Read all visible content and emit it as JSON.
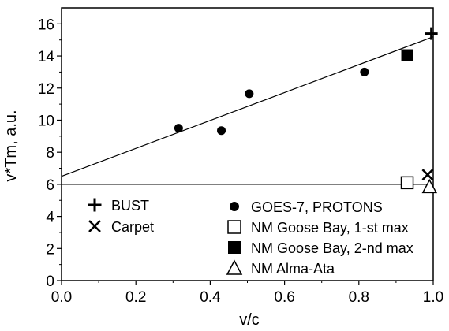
{
  "chart_data": {
    "type": "scatter",
    "xlabel": "v/c",
    "ylabel": "v*Tm, a.u.",
    "xlim": [
      0.0,
      1.0
    ],
    "ylim": [
      0,
      17
    ],
    "x_ticks": [
      "0.0",
      "0.2",
      "0.4",
      "0.6",
      "0.8",
      "1.0"
    ],
    "y_ticks": [
      "0",
      "2",
      "4",
      "6",
      "8",
      "10",
      "12",
      "14",
      "16"
    ],
    "grid": false,
    "legend_position": "bottom",
    "series": [
      {
        "name": "BUST",
        "marker": "plus",
        "points": [
          {
            "x": 0.995,
            "y": 15.4
          }
        ]
      },
      {
        "name": "Carpet",
        "marker": "cross",
        "points": [
          {
            "x": 0.985,
            "y": 6.6
          }
        ]
      },
      {
        "name": "GOES-7, PROTONS",
        "marker": "filled-circle",
        "points": [
          {
            "x": 0.315,
            "y": 9.5
          },
          {
            "x": 0.43,
            "y": 9.35
          },
          {
            "x": 0.505,
            "y": 11.65
          },
          {
            "x": 0.815,
            "y": 13.0
          }
        ]
      },
      {
        "name": "NM Goose Bay, 1-st max",
        "marker": "open-square",
        "points": [
          {
            "x": 0.93,
            "y": 6.1
          }
        ]
      },
      {
        "name": "NM Goose Bay, 2-nd max",
        "marker": "filled-square",
        "points": [
          {
            "x": 0.93,
            "y": 14.05
          }
        ]
      },
      {
        "name": "NM Alma-Ata",
        "marker": "open-triangle",
        "points": [
          {
            "x": 0.99,
            "y": 5.85
          }
        ]
      }
    ],
    "lines": [
      {
        "kind": "fit",
        "points": [
          {
            "x": 0.0,
            "y": 6.5
          },
          {
            "x": 1.0,
            "y": 15.2
          }
        ]
      },
      {
        "kind": "horizontal",
        "points": [
          {
            "x": 0.0,
            "y": 6.0
          },
          {
            "x": 1.0,
            "y": 6.0
          }
        ]
      }
    ]
  }
}
